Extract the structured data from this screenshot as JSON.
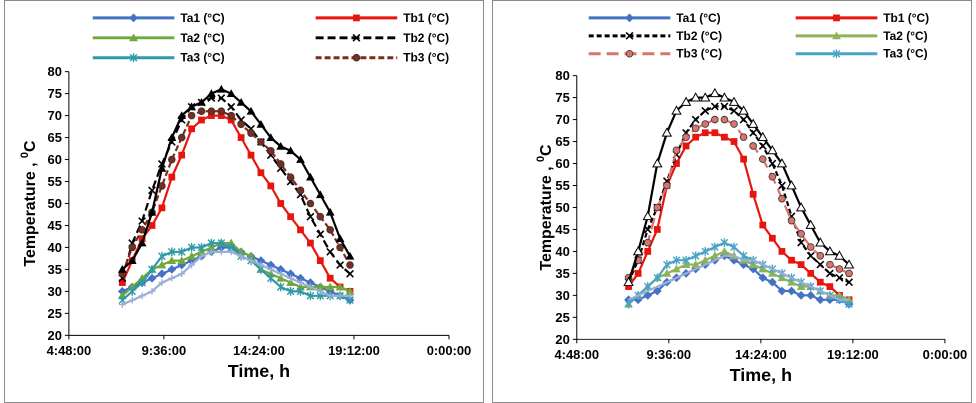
{
  "chart_data": [
    {
      "type": "line",
      "xlabel": "Time, h",
      "ylabel": "Temperature , 0C",
      "ylabel_main": "Temperature , ",
      "ylabel_sup": "0",
      "ylabel_unit": "C",
      "ylim": [
        20,
        80
      ],
      "yticks": [
        20,
        25,
        30,
        35,
        40,
        45,
        50,
        55,
        60,
        65,
        70,
        75,
        80
      ],
      "xlim": [
        0.2,
        1.0
      ],
      "xtick_labels": [
        "4:48:00",
        "9:36:00",
        "14:24:00",
        "19:12:00",
        "0:00:00"
      ],
      "legend": "top",
      "grid": false,
      "x": [
        0.3125,
        0.33333,
        0.35417,
        0.375,
        0.39583,
        0.41667,
        0.4375,
        0.45833,
        0.47917,
        0.5,
        0.52083,
        0.54167,
        0.5625,
        0.58333,
        0.60417,
        0.625,
        0.64583,
        0.66667,
        0.6875,
        0.70833,
        0.72917,
        0.75,
        0.77083,
        0.79167
      ],
      "series": [
        {
          "name": "Ta1 (°C)",
          "color": "#4472c4",
          "marker": "diamond",
          "dash": "",
          "values": [
            30,
            31,
            32,
            33,
            34,
            35,
            36,
            37,
            38,
            39,
            40,
            40,
            39,
            38,
            37,
            36,
            35,
            34,
            33,
            32,
            31,
            30,
            29,
            28
          ]
        },
        {
          "name": "Tb1 (°C)",
          "color": "#e8150f",
          "marker": "square",
          "dash": "",
          "values": [
            32,
            37,
            42,
            45,
            49,
            56,
            61,
            67,
            69,
            70,
            70,
            69,
            65,
            61,
            57,
            54,
            50,
            47,
            44,
            41,
            37,
            33,
            31,
            30
          ]
        },
        {
          "name": "Ta2 (°C)",
          "color": "#70a83a",
          "marker": "triangle",
          "dash": "",
          "values": [
            29,
            31,
            33,
            35,
            36,
            37,
            37,
            38,
            39,
            40,
            41,
            41,
            39,
            38,
            35,
            34,
            33,
            32,
            31,
            31,
            31,
            31,
            31,
            30
          ]
        },
        {
          "name": "Tb2 (°C)",
          "color": "#000000",
          "marker": "x",
          "dash": "8,4",
          "values": [
            33,
            41,
            46,
            53,
            59,
            64,
            69,
            72,
            73,
            74,
            74,
            72,
            69,
            67,
            64,
            61,
            58,
            55,
            52,
            47,
            43,
            39,
            36,
            34
          ]
        },
        {
          "name": "Ta3 (°C)",
          "color": "#2f9aa8",
          "marker": "star",
          "dash": "",
          "values": [
            28,
            30,
            32,
            35,
            38,
            39,
            39,
            40,
            40,
            41,
            41,
            40,
            38,
            37,
            35,
            33,
            31,
            30,
            30,
            29,
            29,
            29,
            29,
            28
          ]
        },
        {
          "name": "Tb3 (°C)",
          "color": "#7b2c1c",
          "marker": "circle",
          "dash": "6,3",
          "values": [
            34,
            40,
            44,
            48,
            54,
            60,
            65,
            70,
            71,
            71,
            71,
            70,
            68,
            66,
            64,
            62,
            59,
            56,
            53,
            50,
            47,
            44,
            40,
            36
          ]
        },
        {
          "name": "",
          "color": "#000000",
          "marker": "triangle",
          "dash": "",
          "values": [
            35,
            37,
            41,
            48,
            58,
            65,
            70,
            72,
            73,
            75,
            76,
            75,
            73,
            71,
            68,
            65,
            63,
            62,
            60,
            56,
            52,
            48,
            42,
            38
          ]
        },
        {
          "name": "",
          "color": "#9aaed6",
          "marker": "plus",
          "dash": "",
          "values": [
            27,
            28,
            29,
            30,
            32,
            33,
            34,
            36,
            38,
            39,
            39,
            39,
            38,
            37,
            36,
            35,
            34,
            33,
            32,
            31,
            30,
            29,
            29,
            29
          ]
        }
      ]
    },
    {
      "type": "line",
      "xlabel": "Time, h",
      "ylabel": "Temperature , 0C",
      "ylabel_main": "Temperature , ",
      "ylabel_sup": "0",
      "ylabel_unit": "C",
      "ylim": [
        20,
        80
      ],
      "yticks": [
        20,
        25,
        30,
        35,
        40,
        45,
        50,
        55,
        60,
        65,
        70,
        75,
        80
      ],
      "xlim": [
        0.2,
        1.0
      ],
      "xtick_labels": [
        "4:48:00",
        "9:36:00",
        "14:24:00",
        "19:12:00",
        "0:00:00"
      ],
      "legend": "top",
      "grid": false,
      "x": [
        0.3125,
        0.33333,
        0.35417,
        0.375,
        0.39583,
        0.41667,
        0.4375,
        0.45833,
        0.47917,
        0.5,
        0.52083,
        0.54167,
        0.5625,
        0.58333,
        0.60417,
        0.625,
        0.64583,
        0.66667,
        0.6875,
        0.70833,
        0.72917,
        0.75,
        0.77083,
        0.79167
      ],
      "series": [
        {
          "name": "Ta1 (°C)",
          "color": "#4472c4",
          "marker": "diamond",
          "dash": "",
          "values": [
            29,
            29,
            30,
            31,
            33,
            34,
            35,
            36,
            37,
            38,
            39,
            38,
            37,
            36,
            34,
            33,
            31,
            31,
            30,
            30,
            29,
            29,
            29,
            28
          ]
        },
        {
          "name": "Tb1 (°C)",
          "color": "#e8150f",
          "marker": "square",
          "dash": "",
          "values": [
            32,
            35,
            40,
            45,
            55,
            60,
            64,
            66,
            67,
            67,
            66,
            65,
            61,
            53,
            46,
            43,
            40,
            38,
            37,
            35,
            33,
            32,
            30,
            29
          ]
        },
        {
          "name": "Tb2 (°C)",
          "color": "#000000",
          "marker": "x",
          "dash": "5,3",
          "values": [
            33,
            38,
            45,
            50,
            56,
            62,
            67,
            70,
            72,
            73,
            73,
            72,
            70,
            67,
            64,
            60,
            55,
            48,
            42,
            39,
            37,
            35,
            34,
            33
          ]
        },
        {
          "name": "Ta2 (°C)",
          "color": "#8db356",
          "marker": "triangle",
          "dash": "",
          "values": [
            28,
            30,
            32,
            34,
            35,
            36,
            37,
            37,
            38,
            39,
            40,
            39,
            38,
            37,
            36,
            35,
            34,
            33,
            32,
            32,
            31,
            30,
            30,
            29
          ]
        },
        {
          "name": "Tb3 (°C)",
          "color": "#d9736c",
          "marker": "circle",
          "dash": "12,6",
          "values": [
            34,
            38,
            42,
            50,
            55,
            63,
            66,
            68,
            69,
            70,
            70,
            69,
            66,
            64,
            61,
            57,
            52,
            47,
            44,
            41,
            39,
            37,
            36,
            35
          ]
        },
        {
          "name": "Ta3 (°C)",
          "color": "#4ba3c7",
          "marker": "star",
          "dash": "",
          "values": [
            28,
            30,
            32,
            34,
            37,
            38,
            38,
            39,
            40,
            41,
            42,
            41,
            39,
            38,
            37,
            36,
            35,
            34,
            33,
            32,
            31,
            30,
            29,
            28
          ]
        },
        {
          "name": "",
          "color": "#000000",
          "marker": "open-triangle",
          "dash": "",
          "values": [
            33,
            40,
            48,
            60,
            67,
            72,
            74,
            75,
            75,
            76,
            75,
            74,
            72,
            69,
            66,
            63,
            60,
            55,
            50,
            46,
            42,
            40,
            39,
            37
          ]
        },
        {
          "name": "",
          "color": "#9aaed6",
          "marker": "none",
          "dash": "",
          "values": [
            29,
            30,
            31,
            32,
            33,
            34,
            35,
            36,
            37,
            38,
            39,
            39,
            38,
            38,
            37,
            36,
            35,
            34,
            33,
            32,
            31,
            30,
            29,
            29
          ]
        }
      ]
    }
  ]
}
